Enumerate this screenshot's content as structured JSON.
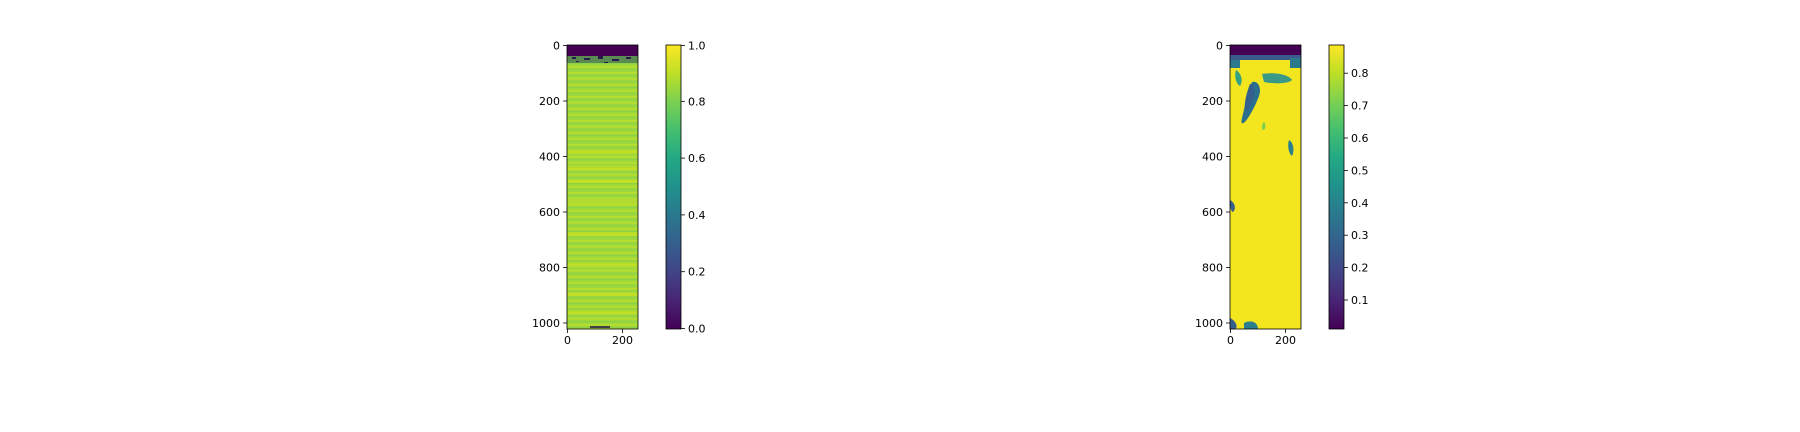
{
  "chart_data": [
    {
      "type": "heatmap",
      "colormap": "viridis",
      "x_range": [
        0,
        256
      ],
      "y_range": [
        0,
        1024
      ],
      "y_inverted": true,
      "x_ticks": [
        "0",
        "200"
      ],
      "y_ticks": [
        "0",
        "200",
        "400",
        "600",
        "800",
        "1000"
      ],
      "colorbar": {
        "range": [
          0.0,
          1.0
        ],
        "ticks": [
          "0.0",
          "0.2",
          "0.4",
          "0.6",
          "0.8",
          "1.0"
        ]
      },
      "description_values": {
        "top_band_rows": [
          0,
          40
        ],
        "top_band_value": 0.0,
        "typical_value": 0.85
      }
    },
    {
      "type": "heatmap",
      "colormap": "viridis",
      "x_range": [
        0,
        256
      ],
      "y_range": [
        0,
        1024
      ],
      "y_inverted": true,
      "x_ticks": [
        "0",
        "200"
      ],
      "y_ticks": [
        "0",
        "200",
        "400",
        "600",
        "800",
        "1000"
      ],
      "colorbar": {
        "range": [
          0.02,
          0.89
        ],
        "ticks": [
          "0.1",
          "0.2",
          "0.3",
          "0.4",
          "0.5",
          "0.6",
          "0.7",
          "0.8"
        ]
      },
      "description_values": {
        "top_band_rows": [
          0,
          40
        ],
        "top_band_value": 0.02,
        "typical_value": 0.89
      }
    }
  ]
}
